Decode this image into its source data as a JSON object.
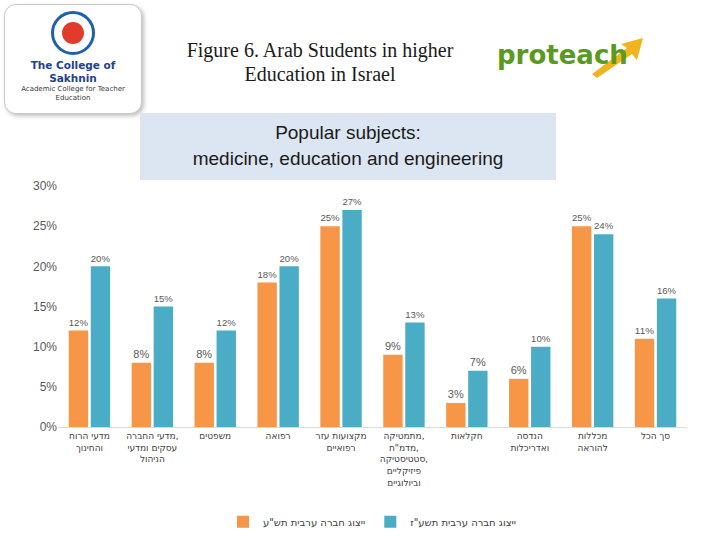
{
  "header": {
    "logo_left": [
      "The College of Sakhnin",
      "Academic College for Teacher Education"
    ],
    "logo_right": "proteach"
  },
  "chart_data": {
    "type": "bar",
    "title": "Figure 6. Arab Students in higher\nEducation in Israel",
    "subtitle": "Popular subjects:\nmedicine, education and engineering",
    "categories": [
      "מדעי הרוח והחינוך",
      "מדעי החברה, עסקים ומדעי הניהול",
      "משפטים",
      "רפואה",
      "מקצועות עזר רפואיים",
      "מתמטיקה, מדמ\"ח, סטטיסטיקה, פיזיקליים וביולוגיים",
      "חקלאות",
      "הנדסה ואדריכלות",
      "מכללות להוראה",
      "סך הכל"
    ],
    "series": [
      {
        "name": "ייצוג חברה ערבית תש\"ע",
        "color": "#f79646",
        "values": [
          12,
          8,
          8,
          18,
          25,
          9,
          3,
          6,
          25,
          11
        ],
        "value_labels": [
          "12%",
          "8%",
          "8%",
          "18%",
          "25%",
          "9%",
          "3%",
          "6%",
          "25%",
          "11%"
        ]
      },
      {
        "name": "ייצוג חברה ערבית תשע\"ז",
        "color": "#4bacc6",
        "values": [
          20,
          15,
          12,
          20,
          27,
          13,
          7,
          10,
          24,
          16
        ],
        "value_labels": [
          "20%",
          "15%",
          "12%",
          "20%",
          "27%",
          "13%",
          "7%",
          "10%",
          "24%",
          "16%"
        ]
      }
    ],
    "ylim": [
      0,
      30
    ],
    "yticks": [
      {
        "value": 0,
        "label": "0%"
      },
      {
        "value": 5,
        "label": "5%"
      },
      {
        "value": 10,
        "label": "10%"
      },
      {
        "value": 15,
        "label": "15%"
      },
      {
        "value": 20,
        "label": "20%"
      },
      {
        "value": 25,
        "label": "25%"
      },
      {
        "value": 30,
        "label": "30%"
      }
    ],
    "grid": false,
    "legend": "bottom",
    "data_labels": true
  }
}
